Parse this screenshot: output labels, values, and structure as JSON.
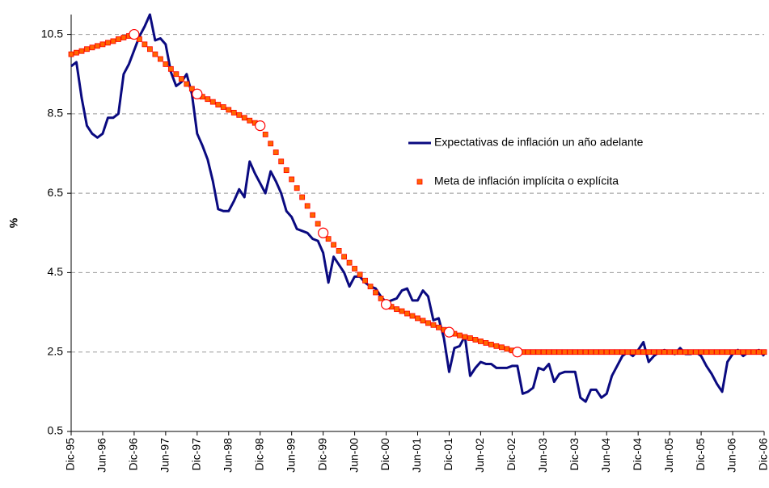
{
  "chart_data": {
    "type": "line",
    "ylabel": "%",
    "categories": [
      "Dic-95",
      null,
      null,
      null,
      null,
      null,
      "Jun-96",
      null,
      null,
      null,
      null,
      null,
      "Dic-96",
      null,
      null,
      null,
      null,
      null,
      "Jun-97",
      null,
      null,
      null,
      null,
      null,
      "Dic-97",
      null,
      null,
      null,
      null,
      null,
      "Jun-98",
      null,
      null,
      null,
      null,
      null,
      "Dic-98",
      null,
      null,
      null,
      null,
      null,
      "Jun-99",
      null,
      null,
      null,
      null,
      null,
      "Dic-99",
      null,
      null,
      null,
      null,
      null,
      "Jun-00",
      null,
      null,
      null,
      null,
      null,
      "Dic-00",
      null,
      null,
      null,
      null,
      null,
      "Jun-01",
      null,
      null,
      null,
      null,
      null,
      "Dic-01",
      null,
      null,
      null,
      null,
      null,
      "Jun-02",
      null,
      null,
      null,
      null,
      null,
      "Dic-02",
      null,
      null,
      null,
      null,
      null,
      "Jun-03",
      null,
      null,
      null,
      null,
      null,
      "Dic-03",
      null,
      null,
      null,
      null,
      null,
      "Jun-04",
      null,
      null,
      null,
      null,
      null,
      "Dic-04",
      null,
      null,
      null,
      null,
      null,
      "Jun-05",
      null,
      null,
      null,
      null,
      null,
      "Dic-05",
      null,
      null,
      null,
      null,
      null,
      "Jun-06",
      null,
      null,
      null,
      null,
      null,
      "Dic-06"
    ],
    "series": [
      {
        "name": "Expectativas de inflación un año adelante",
        "color": "#0a0a80",
        "style": "line",
        "values": [
          9.7,
          9.8,
          8.9,
          8.2,
          8.0,
          7.9,
          8.0,
          8.4,
          8.4,
          8.5,
          9.5,
          9.75,
          10.1,
          10.45,
          10.7,
          11.0,
          10.35,
          10.4,
          10.25,
          9.55,
          9.2,
          9.3,
          9.5,
          9.0,
          8.0,
          7.7,
          7.35,
          6.8,
          6.1,
          6.05,
          6.05,
          6.3,
          6.6,
          6.4,
          7.3,
          7.0,
          6.75,
          6.5,
          7.05,
          6.8,
          6.5,
          6.05,
          5.9,
          5.6,
          5.55,
          5.5,
          5.35,
          5.3,
          5.0,
          4.25,
          4.9,
          4.7,
          4.5,
          4.15,
          4.4,
          4.4,
          4.25,
          4.15,
          4.1,
          3.9,
          3.75,
          3.8,
          3.85,
          4.05,
          4.1,
          3.8,
          3.8,
          4.05,
          3.9,
          3.3,
          3.35,
          2.85,
          2.0,
          2.6,
          2.65,
          2.9,
          1.9,
          2.1,
          2.25,
          2.2,
          2.2,
          2.1,
          2.1,
          2.1,
          2.15,
          2.15,
          1.45,
          1.5,
          1.6,
          2.1,
          2.05,
          2.2,
          1.75,
          1.95,
          2.0,
          2.0,
          2.0,
          1.35,
          1.25,
          1.55,
          1.55,
          1.35,
          1.45,
          1.9,
          2.15,
          2.4,
          2.5,
          2.4,
          2.55,
          2.75,
          2.25,
          2.4,
          2.5,
          2.55,
          2.5,
          2.45,
          2.6,
          2.45,
          2.45,
          2.5,
          2.4,
          2.15,
          1.95,
          1.7,
          1.5,
          2.25,
          2.45,
          2.55,
          2.4,
          2.5,
          2.5,
          2.55,
          2.4
        ]
      },
      {
        "name": "Meta de inflación implícita o explícita",
        "color": "#ff6600",
        "style": "square",
        "values": [
          10.0,
          10.04,
          10.08,
          10.13,
          10.17,
          10.21,
          10.25,
          10.29,
          10.33,
          10.38,
          10.42,
          10.46,
          10.5,
          10.38,
          10.25,
          10.13,
          10.0,
          9.88,
          9.75,
          9.63,
          9.5,
          9.38,
          9.25,
          9.13,
          9.0,
          8.93,
          8.87,
          8.8,
          8.73,
          8.67,
          8.6,
          8.53,
          8.47,
          8.4,
          8.33,
          8.27,
          8.2,
          7.98,
          7.75,
          7.53,
          7.3,
          7.08,
          6.85,
          6.63,
          6.4,
          6.18,
          5.95,
          5.73,
          5.5,
          5.35,
          5.2,
          5.05,
          4.9,
          4.75,
          4.6,
          4.45,
          4.3,
          4.15,
          4.0,
          3.85,
          3.7,
          3.64,
          3.58,
          3.53,
          3.47,
          3.41,
          3.35,
          3.29,
          3.23,
          3.18,
          3.12,
          3.06,
          3.0,
          2.96,
          2.92,
          2.88,
          2.85,
          2.81,
          2.77,
          2.73,
          2.69,
          2.65,
          2.62,
          2.58,
          2.54,
          2.5,
          2.5,
          2.5,
          2.5,
          2.5,
          2.5,
          2.5,
          2.5,
          2.5,
          2.5,
          2.5,
          2.5,
          2.5,
          2.5,
          2.5,
          2.5,
          2.5,
          2.5,
          2.5,
          2.5,
          2.5,
          2.5,
          2.5,
          2.5,
          2.5,
          2.5,
          2.5,
          2.5,
          2.5,
          2.5,
          2.5,
          2.5,
          2.5,
          2.5,
          2.5,
          2.5,
          2.5,
          2.5,
          2.5,
          2.5,
          2.5,
          2.5,
          2.5,
          2.5,
          2.5,
          2.5,
          2.5,
          2.5
        ]
      },
      {
        "color": "#ff0000",
        "style": "circle",
        "values": [
          null,
          null,
          null,
          null,
          null,
          null,
          null,
          null,
          null,
          null,
          null,
          null,
          10.5,
          null,
          null,
          null,
          null,
          null,
          null,
          null,
          null,
          null,
          null,
          null,
          9.0,
          null,
          null,
          null,
          null,
          null,
          null,
          null,
          null,
          null,
          null,
          null,
          8.2,
          null,
          null,
          null,
          null,
          null,
          null,
          null,
          null,
          null,
          null,
          null,
          5.5,
          null,
          null,
          null,
          null,
          null,
          null,
          null,
          null,
          null,
          null,
          null,
          3.7,
          null,
          null,
          null,
          null,
          null,
          null,
          null,
          null,
          null,
          null,
          null,
          3.0,
          null,
          null,
          null,
          null,
          null,
          null,
          null,
          null,
          null,
          null,
          null,
          null,
          2.5,
          null,
          null,
          null,
          null,
          null,
          null,
          null,
          null,
          null,
          null,
          null,
          null,
          null,
          null,
          null,
          null,
          null,
          null,
          null,
          null,
          null,
          null,
          null,
          null,
          null,
          null,
          null,
          null,
          null,
          null,
          null,
          null,
          null,
          null,
          null,
          null,
          null,
          null,
          null,
          null,
          null,
          null,
          null,
          null,
          null,
          null,
          null
        ]
      }
    ],
    "ylim": [
      0.5,
      11
    ],
    "yticks": [
      0.5,
      2.5,
      4.5,
      6.5,
      8.5,
      10.5
    ],
    "grid": true,
    "legend": "right"
  }
}
